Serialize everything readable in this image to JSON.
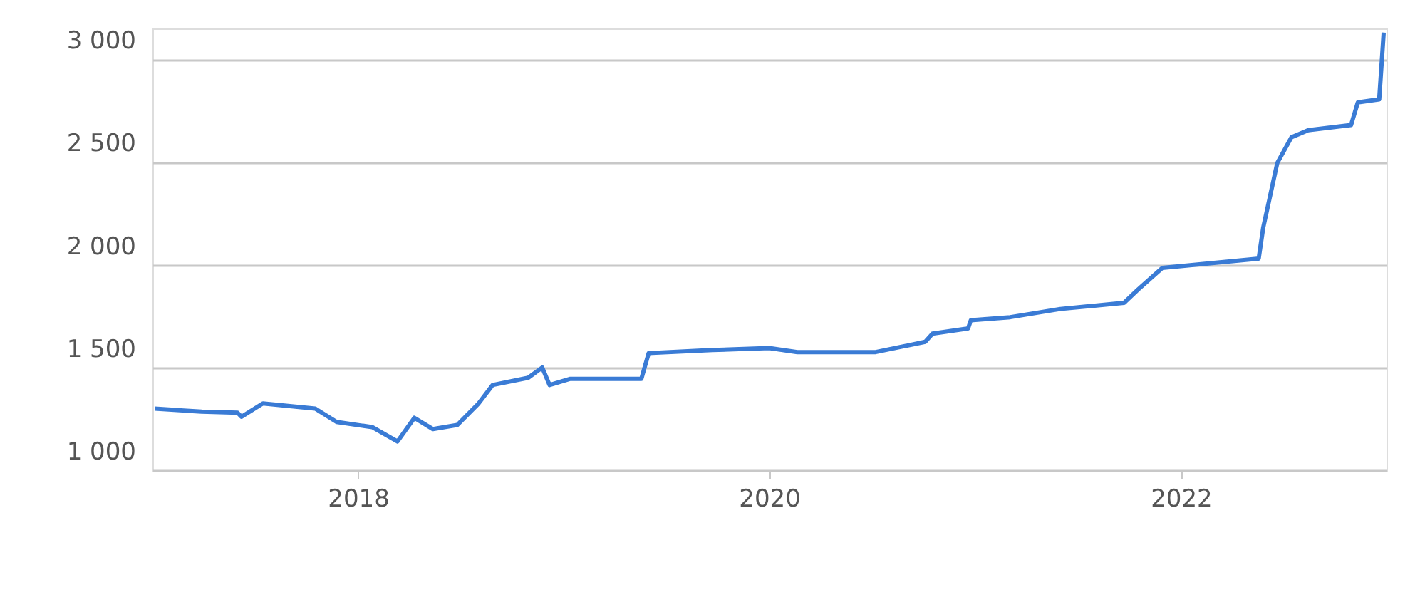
{
  "chart_data": {
    "type": "line",
    "x": [
      "2017-01-05",
      "2017-03-29",
      "2017-06-01",
      "2017-06-08",
      "2017-07-16",
      "2017-10-17",
      "2017-11-24",
      "2018-01-26",
      "2018-03-12",
      "2018-04-11",
      "2018-05-14",
      "2018-06-26",
      "2018-08-03",
      "2018-08-28",
      "2018-10-30",
      "2018-11-24",
      "2018-12-07",
      "2019-01-13",
      "2019-05-19",
      "2019-06-01",
      "2019-09-22",
      "2020-01-01",
      "2020-02-20",
      "2020-07-08",
      "2020-10-04",
      "2020-10-17",
      "2020-12-19",
      "2020-12-24",
      "2021-03-04",
      "2021-06-01",
      "2021-09-22",
      "2021-10-17",
      "2021-11-29",
      "2022-05-19",
      "2022-05-27",
      "2022-06-21",
      "2022-07-16",
      "2022-08-15",
      "2022-10-30",
      "2022-11-11",
      "2022-12-19",
      "2022-12-27"
    ],
    "series": [
      {
        "color": "#3a7bd5",
        "values": [
          1300,
          1285,
          1280,
          1260,
          1325,
          1300,
          1235,
          1210,
          1140,
          1255,
          1200,
          1220,
          1325,
          1415,
          1450,
          1500,
          1415,
          1445,
          1445,
          1570,
          1585,
          1595,
          1575,
          1575,
          1625,
          1665,
          1690,
          1730,
          1745,
          1785,
          1815,
          1880,
          1985,
          2030,
          2180,
          2495,
          2620,
          2655,
          2680,
          2790,
          2805,
          3130
        ]
      }
    ],
    "xlim": [
      "2017-01-01",
      "2023-01-01"
    ],
    "xticks": [
      "2018",
      "2020",
      "2022"
    ],
    "ylim": [
      1000,
      3150
    ],
    "yticks": [
      {
        "value": 1000,
        "label": "1 000"
      },
      {
        "value": 1500,
        "label": "1 500"
      },
      {
        "value": 2000,
        "label": "2 000"
      },
      {
        "value": 2500,
        "label": "2 500"
      },
      {
        "value": 3000,
        "label": "3 000"
      }
    ],
    "grid": "y",
    "line_style": "solid",
    "marker": "none"
  }
}
